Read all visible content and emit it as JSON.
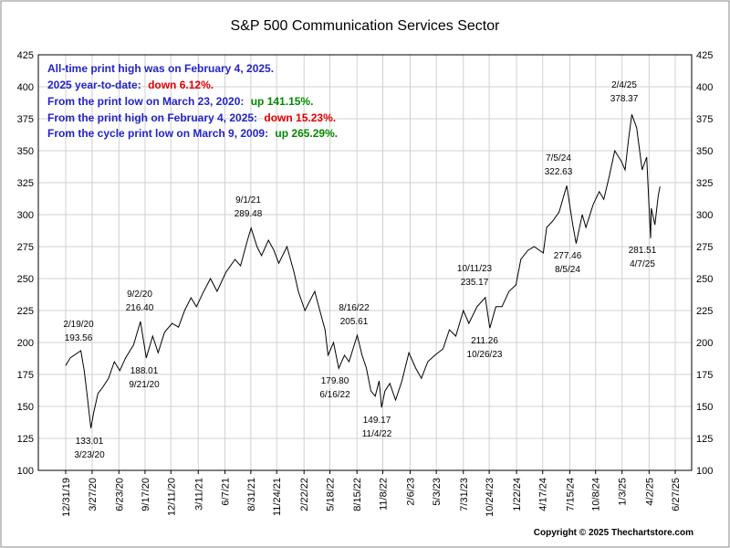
{
  "chart_data": {
    "type": "line",
    "title": "S&P 500 Communication Services Sector",
    "color": "#000000",
    "grid": true,
    "x": [
      "2019-12-31",
      "2020-01-15",
      "2020-02-19",
      "2020-03-01",
      "2020-03-10",
      "2020-03-23",
      "2020-04-01",
      "2020-04-15",
      "2020-05-01",
      "2020-05-20",
      "2020-06-08",
      "2020-06-26",
      "2020-07-15",
      "2020-08-10",
      "2020-09-02",
      "2020-09-21",
      "2020-10-12",
      "2020-10-30",
      "2020-11-20",
      "2020-12-15",
      "2021-01-05",
      "2021-01-25",
      "2021-02-15",
      "2021-03-05",
      "2021-03-25",
      "2021-04-20",
      "2021-05-12",
      "2021-06-10",
      "2021-07-10",
      "2021-07-28",
      "2021-08-20",
      "2021-09-01",
      "2021-09-20",
      "2021-10-05",
      "2021-10-28",
      "2021-11-15",
      "2021-12-01",
      "2021-12-28",
      "2022-01-20",
      "2022-02-03",
      "2022-02-25",
      "2022-03-29",
      "2022-04-15",
      "2022-05-02",
      "2022-05-12",
      "2022-05-30",
      "2022-06-16",
      "2022-07-05",
      "2022-07-20",
      "2022-08-16",
      "2022-09-01",
      "2022-09-15",
      "2022-09-30",
      "2022-10-14",
      "2022-10-27",
      "2022-11-04",
      "2022-11-15",
      "2022-12-01",
      "2022-12-20",
      "2023-01-10",
      "2023-02-02",
      "2023-02-24",
      "2023-03-15",
      "2023-04-05",
      "2023-04-28",
      "2023-05-25",
      "2023-06-15",
      "2023-07-06",
      "2023-07-31",
      "2023-08-18",
      "2023-09-14",
      "2023-10-11",
      "2023-10-26",
      "2023-11-15",
      "2023-12-05",
      "2023-12-28",
      "2024-01-20",
      "2024-02-05",
      "2024-02-28",
      "2024-03-20",
      "2024-04-19",
      "2024-04-30",
      "2024-05-20",
      "2024-06-10",
      "2024-07-05",
      "2024-07-25",
      "2024-08-05",
      "2024-08-25",
      "2024-09-06",
      "2024-09-30",
      "2024-10-20",
      "2024-11-04",
      "2024-11-22",
      "2024-12-10",
      "2024-12-31",
      "2025-01-13",
      "2025-01-25",
      "2025-02-04",
      "2025-02-20",
      "2025-03-10",
      "2025-03-25",
      "2025-04-03",
      "2025-04-07",
      "2025-04-09",
      "2025-04-21",
      "2025-05-02",
      "2025-05-08"
    ],
    "values": [
      182,
      188,
      193.56,
      178,
      160,
      133.01,
      145,
      160,
      165,
      172,
      185,
      178,
      188,
      198,
      216.4,
      188.01,
      205,
      192,
      208,
      215,
      212,
      225,
      235,
      228,
      238,
      250,
      240,
      255,
      265,
      260,
      280,
      289.48,
      275,
      268,
      280,
      272,
      262,
      275,
      255,
      240,
      225,
      240,
      225,
      210,
      190,
      200,
      179.8,
      190,
      185,
      205.61,
      190,
      180,
      162,
      158,
      170,
      149.17,
      162,
      168,
      155,
      170,
      192,
      180,
      172,
      185,
      190,
      195,
      210,
      205,
      225,
      215,
      228,
      235.17,
      211.26,
      228,
      228,
      240,
      245,
      265,
      272,
      275,
      270,
      290,
      295,
      302,
      322.63,
      292,
      277.46,
      300,
      290,
      308,
      318,
      312,
      330,
      350,
      342,
      335,
      360,
      378.37,
      368,
      335,
      345,
      300,
      281.51,
      305,
      292,
      315,
      322
    ],
    "xlim": [
      "2019-10-02",
      "2025-08-20"
    ],
    "xticks": [
      {
        "value": "2019-12-31",
        "label": "12/31/19"
      },
      {
        "value": "2020-03-27",
        "label": "3/27/20"
      },
      {
        "value": "2020-06-23",
        "label": "6/23/20"
      },
      {
        "value": "2020-09-17",
        "label": "9/17/20"
      },
      {
        "value": "2020-12-11",
        "label": "12/11/20"
      },
      {
        "value": "2021-03-11",
        "label": "3/11/21"
      },
      {
        "value": "2021-06-07",
        "label": "6/7/21"
      },
      {
        "value": "2021-08-31",
        "label": "8/31/21"
      },
      {
        "value": "2021-11-24",
        "label": "11/24/21"
      },
      {
        "value": "2022-02-22",
        "label": "2/22/22"
      },
      {
        "value": "2022-05-18",
        "label": "5/18/22"
      },
      {
        "value": "2022-08-15",
        "label": "8/15/22"
      },
      {
        "value": "2022-11-08",
        "label": "11/8/22"
      },
      {
        "value": "2023-02-06",
        "label": "2/6/23"
      },
      {
        "value": "2023-05-03",
        "label": "5/3/23"
      },
      {
        "value": "2023-07-31",
        "label": "7/31/23"
      },
      {
        "value": "2023-10-24",
        "label": "10/24/23"
      },
      {
        "value": "2024-01-22",
        "label": "1/22/24"
      },
      {
        "value": "2024-04-17",
        "label": "4/17/24"
      },
      {
        "value": "2024-07-15",
        "label": "7/15/24"
      },
      {
        "value": "2024-10-08",
        "label": "10/8/24"
      },
      {
        "value": "2025-01-03",
        "label": "1/3/25"
      },
      {
        "value": "2025-04-02",
        "label": "4/2/25"
      },
      {
        "value": "2025-06-27",
        "label": "6/27/25"
      }
    ],
    "ylim": [
      100,
      425
    ],
    "yticks": [
      100,
      125,
      150,
      175,
      200,
      225,
      250,
      275,
      300,
      325,
      350,
      375,
      400,
      425
    ],
    "annotations": [
      {
        "date": "2/19/20",
        "value": "193.56"
      },
      {
        "date": "3/23/20",
        "value": "133.01"
      },
      {
        "date": "9/2/20",
        "value": "216.40"
      },
      {
        "date": "9/21/20",
        "value": "188.01"
      },
      {
        "date": "9/1/21",
        "value": "289.48"
      },
      {
        "date": "6/16/22",
        "value": "179.80"
      },
      {
        "date": "8/16/22",
        "value": "205.61"
      },
      {
        "date": "11/4/22",
        "value": "149.17"
      },
      {
        "date": "10/11/23",
        "value": "235.17"
      },
      {
        "date": "10/26/23",
        "value": "211.26"
      },
      {
        "date": "7/5/24",
        "value": "322.63"
      },
      {
        "date": "8/5/24",
        "value": "277.46"
      },
      {
        "date": "2/4/25",
        "value": "378.37"
      },
      {
        "date": "4/7/25",
        "value": "281.51"
      }
    ],
    "notes": [
      {
        "text": "All-time print high was on February 4, 2025."
      },
      {
        "text": "2025 year-to-date:",
        "change": "down 6.12%."
      },
      {
        "text": "From the print low on March 23, 2020:",
        "change": "up 141.15%."
      },
      {
        "text": "From the print high on February 4, 2025:",
        "change": "down 15.23%."
      },
      {
        "text": "From the cycle print low on March 9, 2009:",
        "change": "up 265.29%."
      }
    ],
    "copyright": "Copyright © 2025 Thechartstore.com"
  }
}
